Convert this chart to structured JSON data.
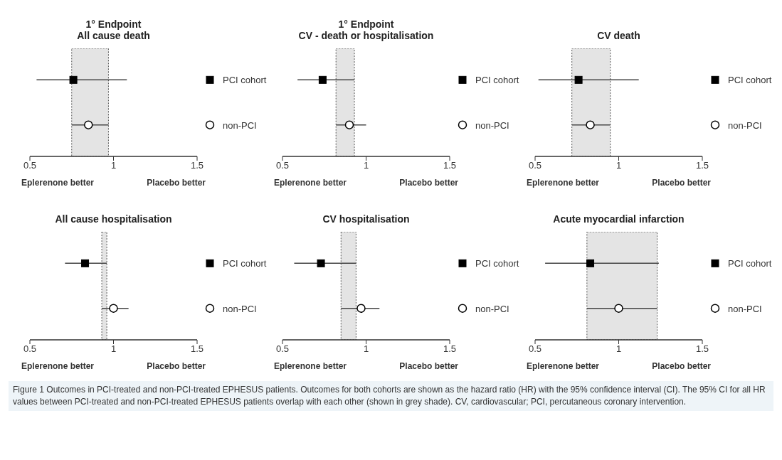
{
  "chart_data": [
    {
      "type": "scatter",
      "title": "1° Endpoint",
      "subtitle": "All cause death",
      "orientation": "horizontal",
      "categories": [
        "PCI cohort",
        "non-PCI"
      ],
      "xlim": [
        0.5,
        1.5
      ],
      "xticks": [
        0.5,
        1,
        1.5
      ],
      "grid": false,
      "annotations": [
        "Eplerenone better",
        "Placebo better"
      ],
      "bands": [
        {
          "axis": "x",
          "from": 0.75,
          "to": 0.97,
          "color": "#e4e4e4"
        }
      ],
      "series": [
        {
          "color": "#000000",
          "marker": "square",
          "values": [
            0.76,
            null
          ],
          "errors": [
            [
              0.54,
              1.08
            ],
            null
          ]
        },
        {
          "color": "#ffffff",
          "marker": "circle",
          "values": [
            null,
            0.85
          ],
          "errors": [
            null,
            [
              0.75,
              0.97
            ]
          ]
        }
      ]
    },
    {
      "type": "scatter",
      "title": "1° Endpoint",
      "subtitle": "CV - death or hospitalisation",
      "orientation": "horizontal",
      "categories": [
        "PCI cohort",
        "non-PCI"
      ],
      "xlim": [
        0.5,
        1.5
      ],
      "xticks": [
        0.5,
        1,
        1.5
      ],
      "grid": false,
      "annotations": [
        "Eplerenone better",
        "Placebo better"
      ],
      "bands": [
        {
          "axis": "x",
          "from": 0.82,
          "to": 0.93,
          "color": "#e4e4e4"
        }
      ],
      "series": [
        {
          "color": "#000000",
          "marker": "square",
          "values": [
            0.74,
            null
          ],
          "errors": [
            [
              0.59,
              0.93
            ],
            null
          ]
        },
        {
          "color": "#ffffff",
          "marker": "circle",
          "values": [
            null,
            0.9
          ],
          "errors": [
            null,
            [
              0.82,
              1.0
            ]
          ]
        }
      ]
    },
    {
      "type": "scatter",
      "title": "CV death",
      "orientation": "horizontal",
      "categories": [
        "PCI cohort",
        "non-PCI"
      ],
      "xlim": [
        0.5,
        1.5
      ],
      "xticks": [
        0.5,
        1,
        1.5
      ],
      "grid": false,
      "annotations": [
        "Eplerenone better",
        "Placebo better"
      ],
      "bands": [
        {
          "axis": "x",
          "from": 0.72,
          "to": 0.95,
          "color": "#e4e4e4"
        }
      ],
      "series": [
        {
          "color": "#000000",
          "marker": "square",
          "values": [
            0.76,
            null
          ],
          "errors": [
            [
              0.52,
              1.12
            ],
            null
          ]
        },
        {
          "color": "#ffffff",
          "marker": "circle",
          "values": [
            null,
            0.83
          ],
          "errors": [
            null,
            [
              0.72,
              0.95
            ]
          ]
        }
      ]
    },
    {
      "type": "scatter",
      "title": "All cause hospitalisation",
      "orientation": "horizontal",
      "categories": [
        "PCI cohort",
        "non-PCI"
      ],
      "xlim": [
        0.5,
        1.5
      ],
      "xticks": [
        0.5,
        1,
        1.5
      ],
      "grid": false,
      "annotations": [
        "Eplerenone better",
        "Placebo better"
      ],
      "bands": [
        {
          "axis": "x",
          "from": 0.93,
          "to": 0.96,
          "color": "#e4e4e4"
        }
      ],
      "series": [
        {
          "color": "#000000",
          "marker": "square",
          "values": [
            0.83,
            null
          ],
          "errors": [
            [
              0.71,
              0.96
            ],
            null
          ]
        },
        {
          "color": "#ffffff",
          "marker": "circle",
          "values": [
            null,
            1.0
          ],
          "errors": [
            null,
            [
              0.93,
              1.09
            ]
          ]
        }
      ]
    },
    {
      "type": "scatter",
      "title": "CV hospitalisation",
      "orientation": "horizontal",
      "categories": [
        "PCI cohort",
        "non-PCI"
      ],
      "xlim": [
        0.5,
        1.5
      ],
      "xticks": [
        0.5,
        1,
        1.5
      ],
      "grid": false,
      "annotations": [
        "Eplerenone better",
        "Placebo better"
      ],
      "bands": [
        {
          "axis": "x",
          "from": 0.85,
          "to": 0.94,
          "color": "#e4e4e4"
        }
      ],
      "series": [
        {
          "color": "#000000",
          "marker": "square",
          "values": [
            0.73,
            null
          ],
          "errors": [
            [
              0.57,
              0.94
            ],
            null
          ]
        },
        {
          "color": "#ffffff",
          "marker": "circle",
          "values": [
            null,
            0.97
          ],
          "errors": [
            null,
            [
              0.85,
              1.08
            ]
          ]
        }
      ]
    },
    {
      "type": "scatter",
      "title": "Acute myocardial infarction",
      "orientation": "horizontal",
      "categories": [
        "PCI cohort",
        "non-PCI"
      ],
      "xlim": [
        0.5,
        1.5
      ],
      "xticks": [
        0.5,
        1,
        1.5
      ],
      "grid": false,
      "annotations": [
        "Eplerenone better",
        "Placebo better",
        "Figure 1 Outcomes in PCI-treated and non-PCI-treated EPHESUS patients. Outcomes for both cohorts are shown as the hazard ratio (HR) with the 95% confidence interval (CI). The 95% CI for all HR values between PCI-treated and non-PCI-treated EPHESUS patients overlap with each other (shown in grey shade). CV, cardiovascular; PCI, percutaneous coronary intervention."
      ],
      "bands": [
        {
          "axis": "x",
          "from": 0.81,
          "to": 1.23,
          "color": "#e4e4e4"
        }
      ],
      "series": [
        {
          "color": "#000000",
          "marker": "square",
          "values": [
            0.83,
            null
          ],
          "errors": [
            [
              0.56,
              1.24
            ],
            null
          ]
        },
        {
          "color": "#ffffff",
          "marker": "circle",
          "values": [
            null,
            1.0
          ],
          "errors": [
            null,
            [
              0.81,
              1.23
            ]
          ]
        }
      ]
    }
  ]
}
